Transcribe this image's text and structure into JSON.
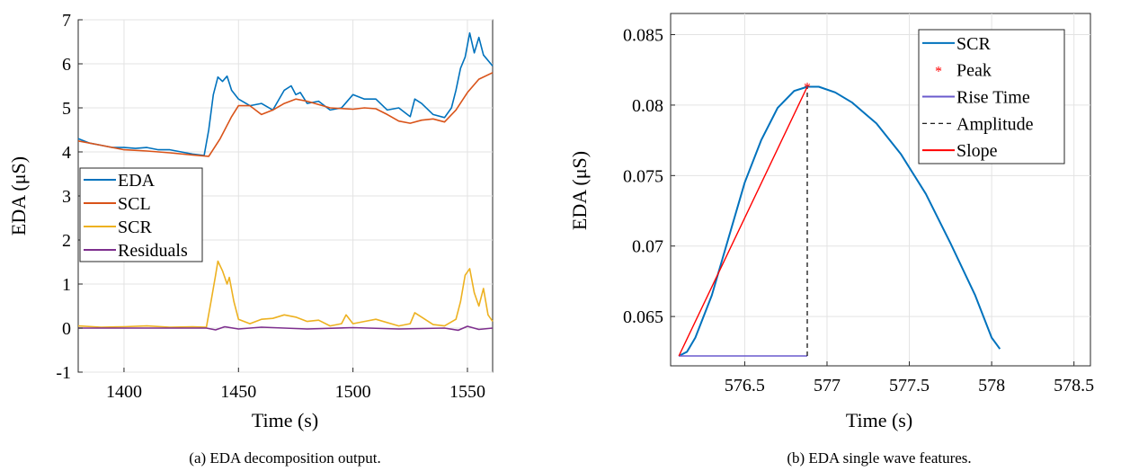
{
  "chart_data": [
    {
      "type": "line",
      "caption": "(a) EDA decomposition output.",
      "xlabel": "Time (s)",
      "ylabel": "EDA (μS)",
      "xlim": [
        1380,
        1561
      ],
      "ylim": [
        -1,
        7
      ],
      "xticks": [
        1400,
        1450,
        1500,
        1550
      ],
      "yticks": [
        -1,
        0,
        1,
        2,
        3,
        4,
        5,
        6,
        7
      ],
      "xtick_labels": [
        "1400",
        "1450",
        "1500",
        "1550"
      ],
      "ytick_labels": [
        "-1",
        "0",
        "1",
        "2",
        "3",
        "4",
        "5",
        "6",
        "7"
      ],
      "grid": true,
      "legend_position": "center-left",
      "series": [
        {
          "name": "EDA",
          "color": "#0072BD",
          "x": [
            1380,
            1385,
            1390,
            1395,
            1400,
            1405,
            1410,
            1415,
            1420,
            1425,
            1430,
            1435,
            1437,
            1439,
            1441,
            1443,
            1445,
            1447,
            1450,
            1455,
            1460,
            1465,
            1470,
            1473,
            1475,
            1477,
            1480,
            1485,
            1490,
            1495,
            1500,
            1505,
            1510,
            1515,
            1520,
            1525,
            1527,
            1530,
            1535,
            1540,
            1543,
            1545,
            1547,
            1549,
            1551,
            1553,
            1555,
            1557,
            1561
          ],
          "y": [
            4.3,
            4.2,
            4.15,
            4.1,
            4.1,
            4.08,
            4.1,
            4.05,
            4.05,
            4.0,
            3.95,
            3.92,
            4.5,
            5.3,
            5.7,
            5.6,
            5.72,
            5.4,
            5.2,
            5.05,
            5.1,
            4.95,
            5.4,
            5.5,
            5.3,
            5.35,
            5.1,
            5.15,
            4.95,
            5.0,
            5.3,
            5.2,
            5.2,
            4.95,
            5.0,
            4.8,
            5.2,
            5.1,
            4.85,
            4.78,
            5.0,
            5.4,
            5.9,
            6.15,
            6.7,
            6.25,
            6.6,
            6.2,
            5.95
          ]
        },
        {
          "name": "SCL",
          "color": "#D95319",
          "x": [
            1380,
            1390,
            1400,
            1410,
            1420,
            1430,
            1437,
            1442,
            1447,
            1450,
            1455,
            1460,
            1465,
            1470,
            1475,
            1480,
            1490,
            1500,
            1505,
            1510,
            1515,
            1520,
            1525,
            1530,
            1535,
            1540,
            1545,
            1550,
            1555,
            1561
          ],
          "y": [
            4.25,
            4.15,
            4.05,
            4.02,
            3.98,
            3.93,
            3.9,
            4.3,
            4.8,
            5.05,
            5.05,
            4.85,
            4.95,
            5.1,
            5.2,
            5.15,
            5.0,
            4.97,
            5.0,
            4.98,
            4.85,
            4.7,
            4.65,
            4.72,
            4.75,
            4.68,
            4.95,
            5.35,
            5.65,
            5.8
          ]
        },
        {
          "name": "SCR",
          "color": "#EDB120",
          "x": [
            1380,
            1390,
            1400,
            1410,
            1420,
            1430,
            1436,
            1438,
            1440,
            1441,
            1443,
            1445,
            1446,
            1448,
            1450,
            1455,
            1460,
            1465,
            1470,
            1475,
            1480,
            1485,
            1490,
            1495,
            1497,
            1500,
            1505,
            1510,
            1520,
            1525,
            1527,
            1530,
            1535,
            1540,
            1545,
            1547,
            1549,
            1551,
            1553,
            1555,
            1557,
            1559,
            1561
          ],
          "y": [
            0.05,
            0.02,
            0.03,
            0.05,
            0.02,
            0.03,
            0.02,
            0.6,
            1.2,
            1.52,
            1.3,
            1.0,
            1.15,
            0.6,
            0.2,
            0.1,
            0.2,
            0.22,
            0.3,
            0.25,
            0.15,
            0.18,
            0.05,
            0.1,
            0.3,
            0.1,
            0.15,
            0.2,
            0.05,
            0.1,
            0.35,
            0.25,
            0.08,
            0.05,
            0.2,
            0.6,
            1.2,
            1.35,
            0.8,
            0.5,
            0.9,
            0.3,
            0.15
          ]
        },
        {
          "name": "Residuals",
          "color": "#7E2F8E",
          "x": [
            1380,
            1400,
            1420,
            1436,
            1440,
            1444,
            1450,
            1460,
            1480,
            1500,
            1520,
            1540,
            1546,
            1550,
            1555,
            1561
          ],
          "y": [
            0.0,
            0.0,
            0.0,
            0.0,
            -0.04,
            0.03,
            -0.02,
            0.02,
            -0.02,
            0.01,
            -0.02,
            0.0,
            -0.05,
            0.04,
            -0.03,
            0.0
          ]
        }
      ]
    },
    {
      "type": "line",
      "caption": "(b) EDA single wave features.",
      "xlabel": "Time (s)",
      "ylabel": "EDA (μS)",
      "xlim": [
        576.05,
        578.6
      ],
      "ylim": [
        0.0615,
        0.0865
      ],
      "xticks": [
        576.5,
        577,
        577.5,
        578,
        578.5
      ],
      "yticks": [
        0.065,
        0.07,
        0.075,
        0.08,
        0.085
      ],
      "xtick_labels": [
        "576.5",
        "577",
        "577.5",
        "578",
        "578.5"
      ],
      "ytick_labels": [
        "0.065",
        "0.07",
        "0.075",
        "0.08",
        "0.085"
      ],
      "grid": true,
      "legend_position": "top-right",
      "series": [
        {
          "name": "SCR",
          "color": "#0072BD",
          "x": [
            576.1,
            576.15,
            576.2,
            576.3,
            576.4,
            576.5,
            576.6,
            576.7,
            576.8,
            576.88,
            576.95,
            577.05,
            577.15,
            577.3,
            577.45,
            577.6,
            577.75,
            577.9,
            578.0,
            578.05
          ],
          "y": [
            0.0622,
            0.0625,
            0.0635,
            0.0665,
            0.0705,
            0.0745,
            0.0775,
            0.0798,
            0.081,
            0.0813,
            0.0813,
            0.0809,
            0.0802,
            0.0787,
            0.0765,
            0.0737,
            0.0702,
            0.0665,
            0.0635,
            0.0627
          ]
        },
        {
          "name": "Peak",
          "color": "#FF0000",
          "x": [
            576.88
          ],
          "y": [
            0.0813
          ]
        },
        {
          "name": "Rise Time",
          "color": "#6A5ACD",
          "x": [
            576.1,
            576.88
          ],
          "y": [
            0.0622,
            0.0622
          ]
        },
        {
          "name": "Amplitude",
          "color": "#000000",
          "x": [
            576.88,
            576.88
          ],
          "y": [
            0.0622,
            0.0813
          ]
        },
        {
          "name": "Slope",
          "color": "#FF0000",
          "x": [
            576.1,
            576.88
          ],
          "y": [
            0.0622,
            0.0813
          ]
        }
      ]
    }
  ]
}
